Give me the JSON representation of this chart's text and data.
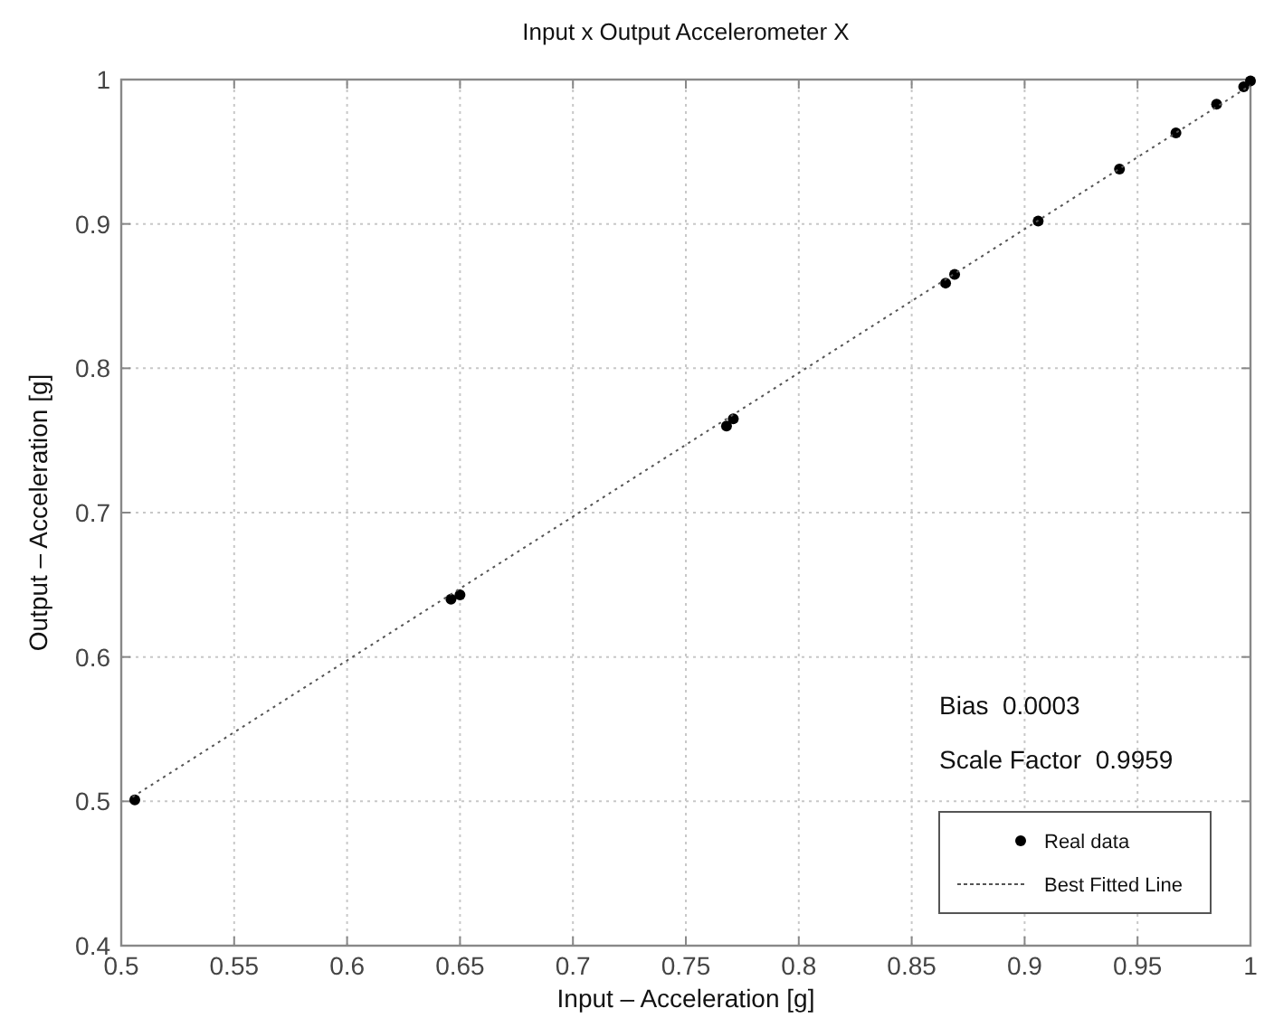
{
  "chart_data": {
    "type": "scatter",
    "title": "Input x Output Accelerometer X",
    "xlabel": "Input – Acceleration [g]",
    "ylabel": "Output – Acceleration [g]",
    "xlim": [
      0.5,
      1
    ],
    "ylim": [
      0.4,
      1
    ],
    "xticks": [
      0.5,
      0.55,
      0.6,
      0.65,
      0.7,
      0.75,
      0.8,
      0.85,
      0.9,
      0.95,
      1
    ],
    "yticks": [
      0.4,
      0.5,
      0.6,
      0.7,
      0.8,
      0.9,
      1
    ],
    "grid": true,
    "legend": "bottom right",
    "annotations": [
      "Bias  0.0003",
      "Scale Factor  0.9959"
    ],
    "series": [
      {
        "name": "Real data",
        "color": "#000000",
        "marker": "circle",
        "x": [
          0.506,
          0.646,
          0.65,
          0.768,
          0.771,
          0.865,
          0.869,
          0.906,
          0.942,
          0.967,
          0.985,
          0.997,
          1.0
        ],
        "values": [
          0.501,
          0.64,
          0.643,
          0.76,
          0.765,
          0.859,
          0.865,
          0.902,
          0.938,
          0.963,
          0.983,
          0.995,
          0.999
        ]
      },
      {
        "name": "Best Fitted Line",
        "type": "line",
        "color": "#555555",
        "line_style": "dotted",
        "marker": "none",
        "x": [
          0.505,
          1.0
        ],
        "values": [
          0.503,
          0.996
        ]
      }
    ]
  }
}
